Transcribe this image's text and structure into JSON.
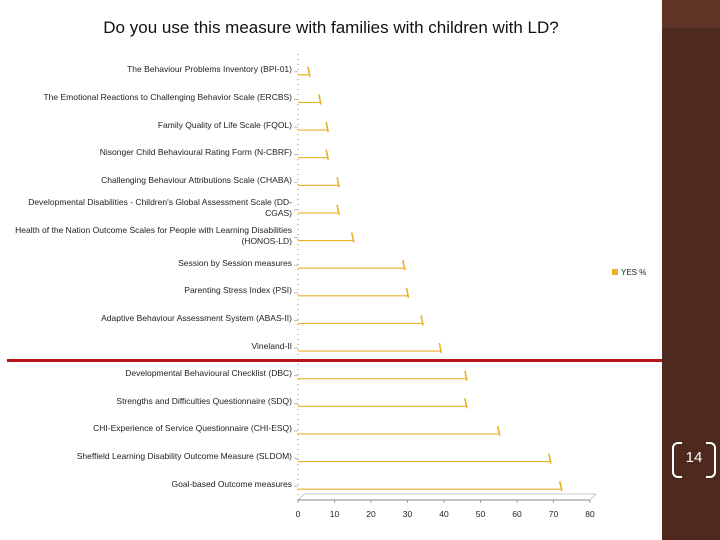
{
  "slide": {
    "title": "Do you use this measure with families with children with LD?",
    "page_number": "14"
  },
  "colors": {
    "bar": "#e8b12a",
    "panel": "#4e2a1e",
    "divider": "#b8141c"
  },
  "chart_data": {
    "type": "bar",
    "orientation": "horizontal",
    "title": "Do you use this measure with families with children with LD?",
    "xlabel": "",
    "ylabel": "",
    "xlim": [
      0,
      80
    ],
    "xticks": [
      0,
      10,
      20,
      30,
      40,
      50,
      60,
      70,
      80
    ],
    "grid": false,
    "legend_position": "right",
    "categories": [
      "The Behaviour Problems Inventory (BPI-01)",
      "The Emotional Reactions to Challenging Behavior Scale (ERCBS)",
      "Family Quality of Life Scale (FQOL)",
      "Nisonger Child Behavioural Rating Form (N-CBRF)",
      "Challenging Behaviour Attributions Scale (CHABA)",
      "Developmental Disabilities - Children's Global Assessment Scale (DD-CGAS)",
      "Health of the Nation Outcome Scales for People with Learning Disabilities (HONOS-LD)",
      "Session by Session measures",
      "Parenting Stress Index (PSI)",
      "Adaptive Behaviour Assessment System (ABAS-II)",
      "Vineland-II",
      "Developmental Behavioural Checklist (DBC)",
      "Strengths and Difficulties Questionnaire (SDQ)",
      "CHI-Experience of Service Questionnaire (CHI-ESQ)",
      "Sheffield Learning Disability Outcome Measure (SLDOM)",
      "Goal-based Outcome measures"
    ],
    "series": [
      {
        "name": "YES %",
        "values": [
          3,
          6,
          8,
          8,
          11,
          11,
          15,
          29,
          30,
          34,
          39,
          46,
          46,
          55,
          69,
          72
        ]
      }
    ]
  }
}
